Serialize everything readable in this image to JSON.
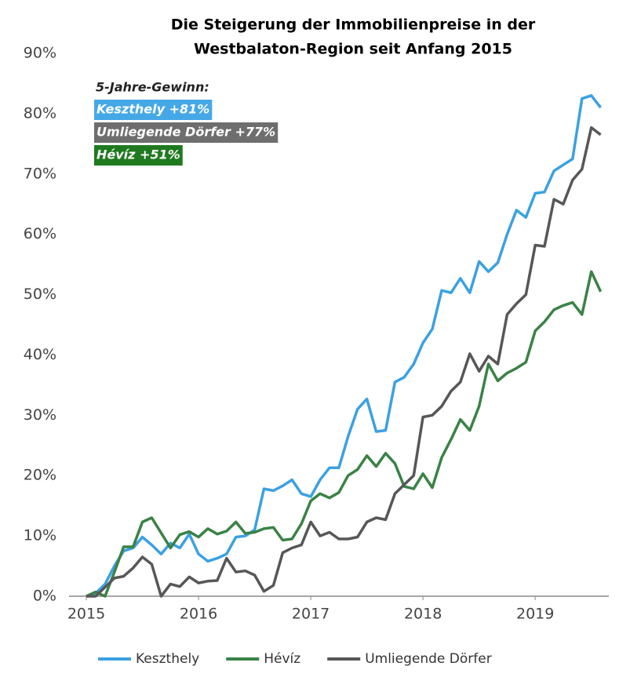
{
  "chart_data": {
    "type": "line",
    "title": [
      "Die Steigerung der Immobilienpreise in der",
      "Westbalaton-Region seit Anfang 2015"
    ],
    "annotation": {
      "heading": "5-Jahre-Gewinn:",
      "items": [
        {
          "text": "Keszthely +81%",
          "color": "#45a8e6"
        },
        {
          "text": "Umliegende Dörfer +77%",
          "color": "#6e6e6e"
        },
        {
          "text": "Hévíz +51%",
          "color": "#1f7a1f"
        }
      ]
    },
    "x": [
      2015,
      2015.083,
      2015.167,
      2015.25,
      2015.333,
      2015.417,
      2015.5,
      2015.583,
      2015.667,
      2015.75,
      2015.833,
      2015.917,
      2016,
      2016.083,
      2016.167,
      2016.25,
      2016.333,
      2016.417,
      2016.5,
      2016.583,
      2016.667,
      2016.75,
      2016.833,
      2016.917,
      2017,
      2017.083,
      2017.167,
      2017.25,
      2017.333,
      2017.417,
      2017.5,
      2017.583,
      2017.667,
      2017.75,
      2017.833,
      2017.917,
      2018,
      2018.083,
      2018.167,
      2018.25,
      2018.333,
      2018.417,
      2018.5,
      2018.583,
      2018.667,
      2018.75,
      2018.833,
      2018.917,
      2019,
      2019.083,
      2019.167,
      2019.25,
      2019.333,
      2019.417,
      2019.5,
      2019.583
    ],
    "series": [
      {
        "name": "Keszthely",
        "color": "#3ba1e2",
        "values": [
          0,
          0.5,
          2,
          5,
          7.5,
          8,
          9.8,
          8.5,
          7,
          8.8,
          8,
          10.3,
          7,
          5.8,
          6.3,
          7,
          9.8,
          10,
          11,
          17.8,
          17.5,
          18.3,
          19.3,
          17,
          16.5,
          19.3,
          21.3,
          21.3,
          26.5,
          31,
          32.7,
          27.3,
          27.5,
          35.5,
          36.3,
          38.5,
          42,
          44.3,
          50.7,
          50.3,
          52.7,
          50.3,
          55.5,
          53.8,
          55.3,
          60,
          64,
          62.8,
          66.8,
          67,
          70.5,
          71.5,
          72.5,
          82.5,
          83,
          81
        ]
      },
      {
        "name": "Hévíz",
        "color": "#3a8246",
        "values": [
          0,
          0.7,
          0,
          4,
          8.2,
          8.2,
          12.3,
          13,
          10.5,
          8,
          10.2,
          10.7,
          9.8,
          11.2,
          10.3,
          10.8,
          12.3,
          10.4,
          10.6,
          11.2,
          11.4,
          9.3,
          9.5,
          12,
          15.8,
          17,
          16.3,
          17.2,
          20,
          21,
          23.3,
          21.5,
          23.7,
          22,
          18.2,
          17.8,
          20.3,
          18,
          23,
          26,
          29.3,
          27.5,
          31.5,
          38.5,
          35.7,
          37,
          37.8,
          38.8,
          44,
          45.5,
          47.5,
          48.2,
          48.7,
          46.7,
          53.8,
          50.5
        ]
      },
      {
        "name": "Umliegende Dörfer",
        "color": "#575757",
        "values": [
          0,
          0,
          1.5,
          3,
          3.3,
          4.7,
          6.5,
          5.3,
          0,
          2,
          1.6,
          3.2,
          2.2,
          2.5,
          2.6,
          6.3,
          4,
          4.2,
          3.5,
          0.8,
          1.8,
          7.2,
          8,
          8.5,
          12.3,
          10,
          10.6,
          9.5,
          9.5,
          9.8,
          12.3,
          13,
          12.7,
          17,
          18.5,
          20,
          29.7,
          30,
          31.5,
          34,
          35.5,
          40.2,
          37.3,
          39.8,
          38.5,
          46.7,
          48.5,
          50,
          58.2,
          58,
          65.8,
          65,
          69,
          70.8,
          77.7,
          76.5
        ]
      }
    ],
    "xlim": [
      2014.93,
      2019.6
    ],
    "xticks": [
      2015,
      2016,
      2017,
      2018,
      2019
    ],
    "ylim": [
      0,
      90
    ],
    "yticks": [
      {
        "value": 0,
        "label": "0%"
      },
      {
        "value": 10,
        "label": "10%"
      },
      {
        "value": 20,
        "label": "20%"
      },
      {
        "value": 30,
        "label": "30%"
      },
      {
        "value": 40,
        "label": "40%"
      },
      {
        "value": 50,
        "label": "50%"
      },
      {
        "value": 60,
        "label": "60%"
      },
      {
        "value": 70,
        "label": "70%"
      },
      {
        "value": 80,
        "label": "80%"
      },
      {
        "value": 90,
        "label": "90%"
      }
    ],
    "grid": false,
    "legend": "bottom"
  }
}
